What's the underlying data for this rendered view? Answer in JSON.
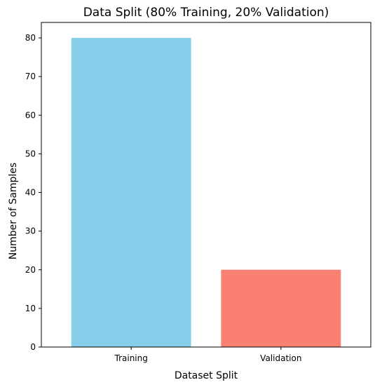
{
  "chart_data": {
    "type": "bar",
    "title": "Data Split (80% Training, 20% Validation)",
    "xlabel": "Dataset Split",
    "ylabel": "Number of Samples",
    "categories": [
      "Training",
      "Validation"
    ],
    "values": [
      80,
      20
    ],
    "colors": [
      "#87ceeb",
      "#fa8072"
    ],
    "ylim": [
      0,
      84
    ],
    "yticks": [
      0,
      10,
      20,
      30,
      40,
      50,
      60,
      70,
      80
    ],
    "grid": false,
    "legend": "none"
  }
}
